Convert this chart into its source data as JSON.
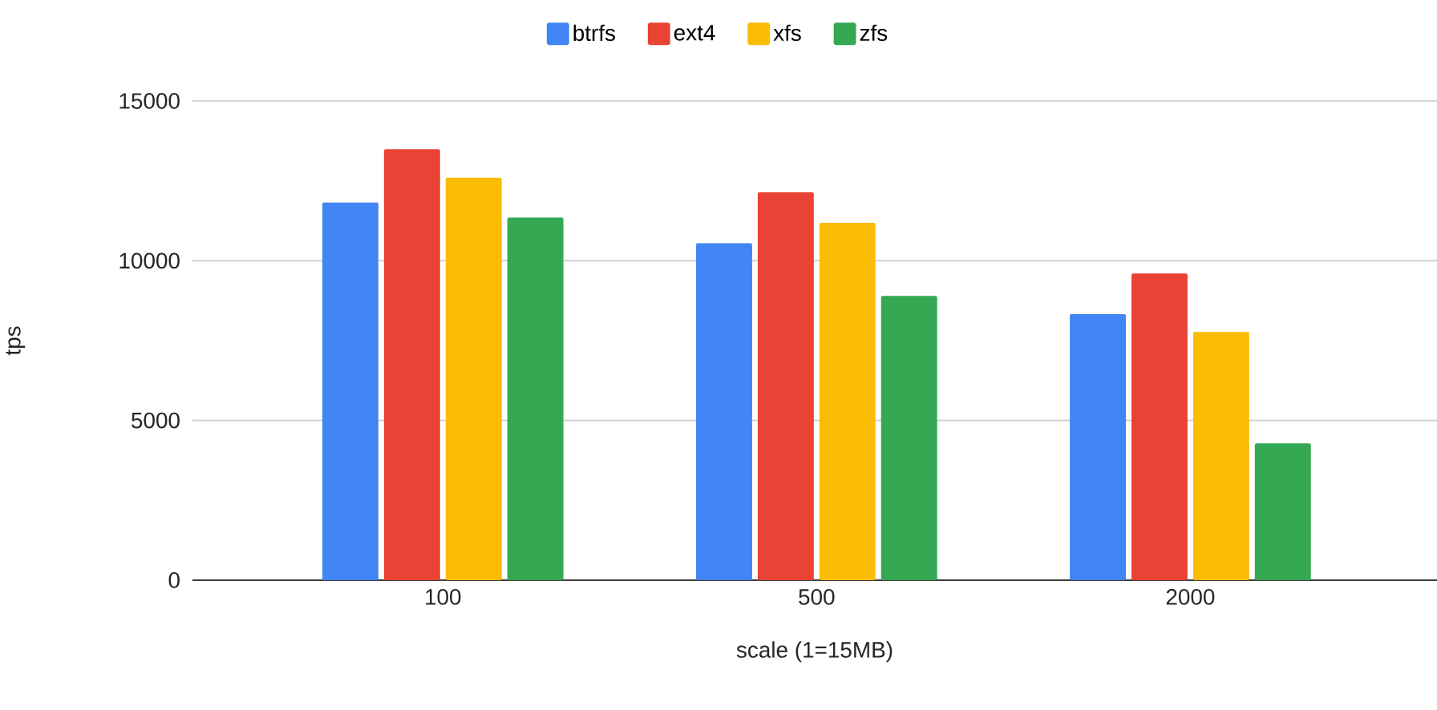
{
  "chart_data": {
    "type": "bar",
    "xlabel": "scale (1=15MB)",
    "ylabel": "tps",
    "categories": [
      "100",
      "500",
      "2000"
    ],
    "series": [
      {
        "name": "btrfs",
        "color": "#4285f4",
        "values": [
          11820,
          10550,
          8330
        ]
      },
      {
        "name": "ext4",
        "color": "#ea4335",
        "values": [
          13490,
          12140,
          9600
        ]
      },
      {
        "name": "xfs",
        "color": "#fbbc04",
        "values": [
          12600,
          11190,
          7770
        ]
      },
      {
        "name": "zfs",
        "color": "#34a853",
        "values": [
          11350,
          8900,
          4280
        ]
      }
    ],
    "ylim": [
      0,
      15000
    ],
    "yticks": [
      0,
      5000,
      10000,
      15000
    ],
    "grid": "y",
    "legend": "top"
  }
}
